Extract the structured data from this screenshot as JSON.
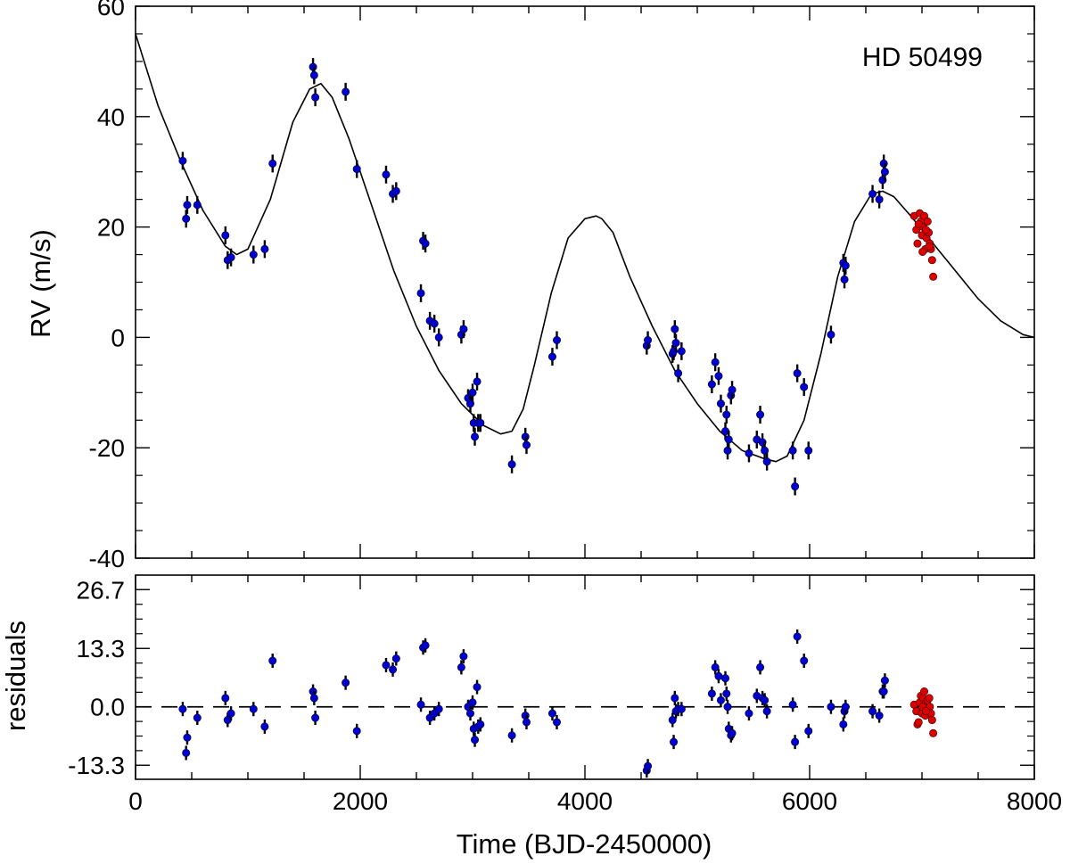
{
  "chart_data": [
    {
      "type": "scatter",
      "panel": "rv",
      "target_label": "HD 50499",
      "ylabel": "RV (m/s)",
      "xlabel": "",
      "xlim": [
        0,
        8000
      ],
      "ylim": [
        -40,
        60
      ],
      "x_ticks": [
        0,
        2000,
        4000,
        6000,
        8000
      ],
      "y_ticks": [
        -40,
        -20,
        0,
        20,
        40,
        60
      ],
      "y_tick_labels": [
        "-40",
        "-20",
        "0",
        "20",
        "40",
        "60"
      ],
      "colors": {
        "dataset_1": "#0000cc",
        "dataset_2": "#dd0000",
        "model": "#000000"
      },
      "model_curve": {
        "x": [
          0,
          200,
          400,
          600,
          800,
          900,
          1000,
          1200,
          1400,
          1550,
          1650,
          1750,
          1900,
          2100,
          2300,
          2500,
          2700,
          2900,
          3100,
          3250,
          3350,
          3450,
          3550,
          3700,
          3850,
          4000,
          4100,
          4150,
          4250,
          4400,
          4600,
          4800,
          5000,
          5200,
          5400,
          5600,
          5700,
          5800,
          5950,
          6100,
          6250,
          6400,
          6550,
          6650,
          6750,
          6900,
          7100,
          7300,
          7500,
          7700,
          7900,
          8000
        ],
        "y": [
          55,
          42,
          32,
          23,
          16.5,
          15,
          16,
          25,
          39,
          45,
          46,
          43.5,
          36,
          24,
          12,
          2,
          -6,
          -12,
          -16,
          -17.5,
          -17,
          -13,
          -5,
          8,
          18,
          21.5,
          22,
          21.5,
          19,
          11,
          2,
          -6,
          -12,
          -17,
          -20.5,
          -22,
          -22.5,
          -21.5,
          -15,
          -3,
          11,
          21,
          26,
          26.5,
          25.5,
          22,
          17,
          12,
          7,
          3,
          0.5,
          0
        ]
      },
      "series": [
        {
          "name": "",
          "x": [
            420,
            450,
            460,
            550,
            800,
            820,
            850,
            1050,
            1150,
            1220,
            1580,
            1590,
            1600,
            1870,
            1970,
            2230,
            2290,
            2320,
            2540,
            2560,
            2580,
            2620,
            2660,
            2700,
            2900,
            2920,
            2960,
            2980,
            3000,
            3010,
            3020,
            3040,
            3050,
            3070,
            3350,
            3470,
            3480,
            3710,
            3750,
            4550,
            4560,
            4780,
            4790,
            4800,
            4810,
            4830,
            4860,
            5130,
            5160,
            5190,
            5210,
            5250,
            5260,
            5270,
            5280,
            5300,
            5310,
            5460,
            5530,
            5560,
            5580,
            5600,
            5620,
            5850,
            5870,
            5890,
            5950,
            5990,
            6190,
            6300,
            6310,
            6320,
            6560,
            6620,
            6650,
            6660,
            6670
          ],
          "y": [
            32,
            21.5,
            24,
            24,
            18.5,
            14,
            14.5,
            15,
            16,
            31.5,
            49,
            47.5,
            43.5,
            44.5,
            30.5,
            29.5,
            26,
            26.5,
            8,
            17.5,
            17,
            3,
            2.5,
            0,
            0.5,
            1.5,
            -11,
            -12,
            -10,
            -15.5,
            -18,
            -8,
            -15.5,
            -15.5,
            -23,
            -18,
            -19.5,
            -3.5,
            -0.5,
            -1.5,
            -0.5,
            -3,
            -2.5,
            1.5,
            -1,
            -6.5,
            -2.5,
            -8.5,
            -4.5,
            -7,
            -12,
            -17,
            -14,
            -20.5,
            -18.5,
            -10.5,
            -9.5,
            -21,
            -18.5,
            -14,
            -19,
            -20.5,
            -22.5,
            -20.5,
            -27,
            -6.5,
            -9,
            -20.5,
            0.5,
            13.5,
            10.5,
            13,
            26,
            25,
            28.5,
            31.5,
            30
          ]
        },
        {
          "name": "",
          "x": [
            6930,
            6950,
            6960,
            6980,
            6990,
            7000,
            7010,
            7020,
            7030,
            7040,
            7050,
            7060,
            7070,
            7080,
            7090,
            7100,
            6970,
            7005,
            7035,
            7065
          ],
          "y": [
            22,
            19.5,
            17,
            22.5,
            21,
            18.5,
            20,
            22,
            16,
            18,
            21,
            19,
            17,
            16,
            14,
            11,
            20.5,
            15.5,
            19.5,
            16.5
          ]
        }
      ]
    },
    {
      "type": "scatter",
      "panel": "residuals",
      "ylabel": "residuals",
      "xlabel": "Time (BJD-2450000)",
      "xlim": [
        0,
        8000
      ],
      "ylim": [
        -16.5,
        30
      ],
      "x_ticks": [
        0,
        2000,
        4000,
        6000,
        8000
      ],
      "x_tick_labels": [
        "0",
        "2000",
        "4000",
        "6000",
        "8000"
      ],
      "y_ticks": [
        -13.3,
        0,
        13.3,
        26.7
      ],
      "y_tick_labels": [
        "-13.3",
        "0.0",
        "13.3",
        "26.7"
      ],
      "zero_line": "dashed",
      "series": [
        {
          "name": "",
          "x": [
            420,
            450,
            460,
            550,
            800,
            820,
            850,
            1050,
            1150,
            1220,
            1580,
            1590,
            1600,
            1870,
            1970,
            2230,
            2290,
            2320,
            2540,
            2560,
            2580,
            2620,
            2660,
            2700,
            2900,
            2920,
            2960,
            2980,
            3000,
            3010,
            3020,
            3040,
            3050,
            3070,
            3350,
            3470,
            3480,
            3710,
            3750,
            4550,
            4560,
            4780,
            4790,
            4800,
            4810,
            4830,
            4860,
            5130,
            5160,
            5190,
            5210,
            5250,
            5260,
            5270,
            5280,
            5300,
            5310,
            5460,
            5530,
            5560,
            5580,
            5600,
            5620,
            5850,
            5870,
            5890,
            5950,
            5990,
            6190,
            6300,
            6310,
            6320,
            6560,
            6620,
            6650,
            6660,
            6670
          ],
          "y": [
            -0.5,
            -10.5,
            -7,
            -2.5,
            2,
            -3,
            -1.5,
            -0.5,
            -4.5,
            10.5,
            3.5,
            2,
            -2.5,
            5.5,
            -5.5,
            9.5,
            8.5,
            11,
            0.5,
            13.5,
            14,
            -2.5,
            -1.5,
            -0.5,
            9,
            11.5,
            0,
            -1.5,
            1,
            -5,
            -7.5,
            4.5,
            -4.5,
            -4,
            -6.5,
            -2,
            -3.5,
            -1.5,
            -3.5,
            -14.5,
            -13.5,
            -3,
            -8,
            2,
            -1,
            -0.5,
            -0.5,
            3,
            9,
            7,
            1.5,
            6.5,
            3,
            0,
            -5,
            -6.5,
            -6,
            -1.5,
            2.5,
            9,
            2,
            1.5,
            -1,
            0.5,
            -8,
            16,
            10.5,
            -5.5,
            0,
            -4,
            -1,
            0,
            -1,
            -2,
            3.5,
            3.5,
            6
          ]
        },
        {
          "name": "",
          "x": [
            6930,
            6950,
            6960,
            6980,
            6990,
            7000,
            7010,
            7020,
            7030,
            7040,
            7050,
            7060,
            7070,
            7080,
            7090,
            7100,
            6970,
            7005,
            7035,
            7065
          ],
          "y": [
            0.5,
            -1,
            -4,
            1,
            2.5,
            -1.5,
            2,
            3.5,
            -2,
            1,
            1.5,
            -0.5,
            0,
            -1.5,
            -3,
            -6,
            -3.5,
            0,
            -1,
            2
          ]
        }
      ]
    }
  ]
}
